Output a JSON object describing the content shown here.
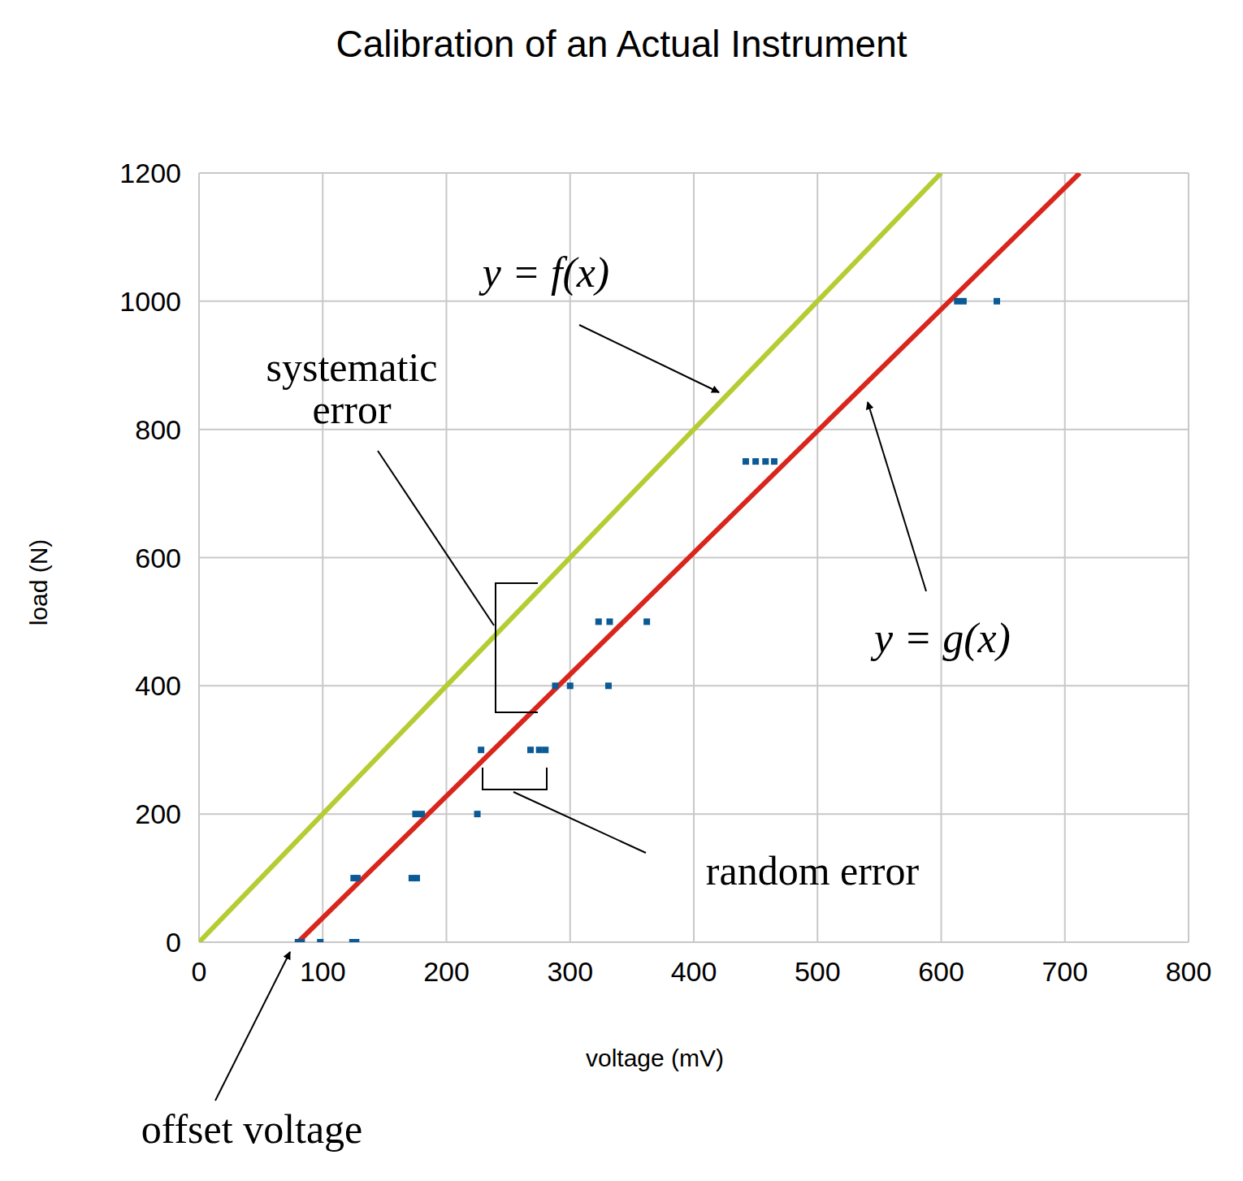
{
  "chart_data": {
    "type": "scatter",
    "title": "Calibration of an Actual Instrument",
    "x_label": "voltage (mV)",
    "y_label": "load (N)",
    "xlim": [
      0,
      800
    ],
    "xticks": [
      0,
      100,
      200,
      300,
      400,
      500,
      600,
      700,
      800
    ],
    "ylim": [
      0,
      1200
    ],
    "yticks": [
      0,
      200,
      400,
      600,
      800,
      1000,
      1200
    ],
    "grid": true,
    "series": [
      {
        "name": "y = f(x)",
        "type": "line",
        "color": "#b5cc32",
        "x": [
          0,
          600
        ],
        "values": [
          0,
          1200
        ]
      },
      {
        "name": "y = g(x)",
        "type": "line",
        "color": "#d9261c",
        "x": [
          80,
          712
        ],
        "values": [
          0,
          1200
        ]
      },
      {
        "type": "scatter",
        "marker": "square",
        "color": "#0b5a96",
        "x": [
          80,
          83,
          98,
          124,
          127,
          125,
          128,
          172,
          176,
          175,
          180,
          225,
          228,
          268,
          275,
          280,
          288,
          300,
          331,
          323,
          332,
          362,
          442,
          450,
          458,
          465,
          613,
          618,
          645
        ],
        "values": [
          0,
          0,
          0,
          0,
          0,
          100,
          100,
          100,
          100,
          200,
          200,
          200,
          300,
          300,
          300,
          300,
          400,
          400,
          400,
          500,
          500,
          500,
          750,
          750,
          750,
          750,
          1000,
          1000,
          1000
        ]
      }
    ],
    "annotations": [
      "systematic error",
      "random error",
      "offset voltage"
    ]
  }
}
